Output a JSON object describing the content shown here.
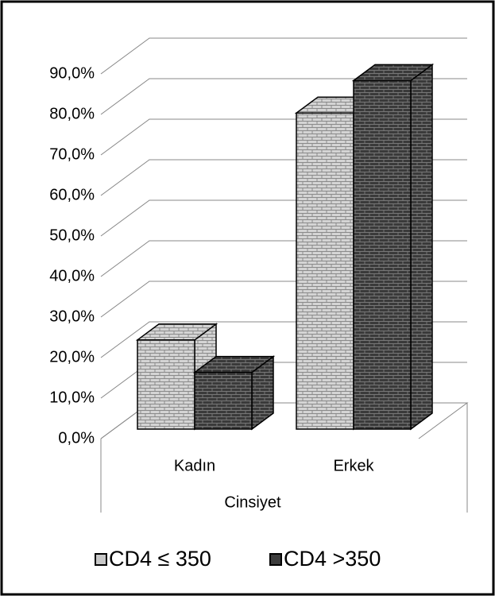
{
  "chart_data": {
    "type": "bar3d",
    "x_label": "Cinsiyet",
    "categories": [
      "Kadın",
      "Erkek"
    ],
    "series": [
      {
        "name": "CD4 ≤ 350",
        "color": "#c8c8c8",
        "values": [
          22,
          78
        ]
      },
      {
        "name": "CD4 >350",
        "color": "#3c3c3c",
        "values": [
          14,
          86
        ]
      }
    ],
    "ylim": [
      0,
      90
    ],
    "yticks": [
      {
        "value": 0,
        "label": "0,0%"
      },
      {
        "value": 10,
        "label": "10,0%"
      },
      {
        "value": 20,
        "label": "20,0%"
      },
      {
        "value": 30,
        "label": "30,0%"
      },
      {
        "value": 40,
        "label": "40,0%"
      },
      {
        "value": 50,
        "label": "50,0%"
      },
      {
        "value": 60,
        "label": "60,0%"
      },
      {
        "value": 70,
        "label": "70,0%"
      },
      {
        "value": 80,
        "label": "80,0%"
      },
      {
        "value": 90,
        "label": "90,0%"
      }
    ],
    "grid": true,
    "legend": "bottom"
  }
}
